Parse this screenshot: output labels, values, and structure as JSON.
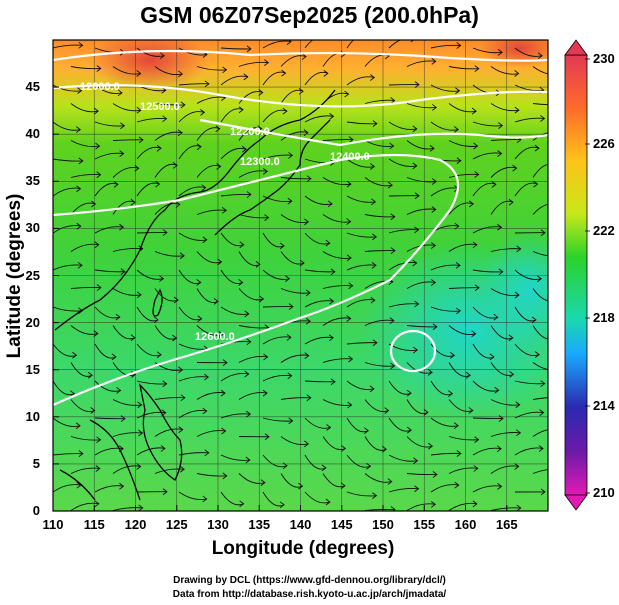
{
  "title": "GSM 06Z07Sep2025 (200.0hPa)",
  "map": {
    "xlabel": "Longitude (degrees)",
    "ylabel": "Latitude  (degrees)",
    "lon_range": [
      110,
      170
    ],
    "lat_range": [
      0,
      50
    ],
    "x_ticks": [
      "110",
      "115",
      "120",
      "125",
      "130",
      "135",
      "140",
      "145",
      "150",
      "155",
      "160",
      "165"
    ],
    "y_ticks": [
      "0",
      "5",
      "10",
      "15",
      "20",
      "25",
      "30",
      "35",
      "40",
      "45"
    ],
    "contour_labels": [
      "12000.0",
      "12200.0",
      "12300.0",
      "12400.0",
      "12500.0",
      "12600.0"
    ]
  },
  "colorbar": {
    "ticks": [
      "230",
      "226",
      "222",
      "218",
      "214",
      "210"
    ],
    "colors": [
      "#e23a55",
      "#ff9a1a",
      "#ffe01a",
      "#2bd22b",
      "#1ad8b0",
      "#1a8cff",
      "#2222aa",
      "#d21ab4"
    ]
  },
  "credits": [
    "Drawing by DCL (https://www.gfd-dennou.org/library/dcl/)",
    "Data from http://database.rish.kyoto-u.ac.jp/arch/jmadata/"
  ]
}
